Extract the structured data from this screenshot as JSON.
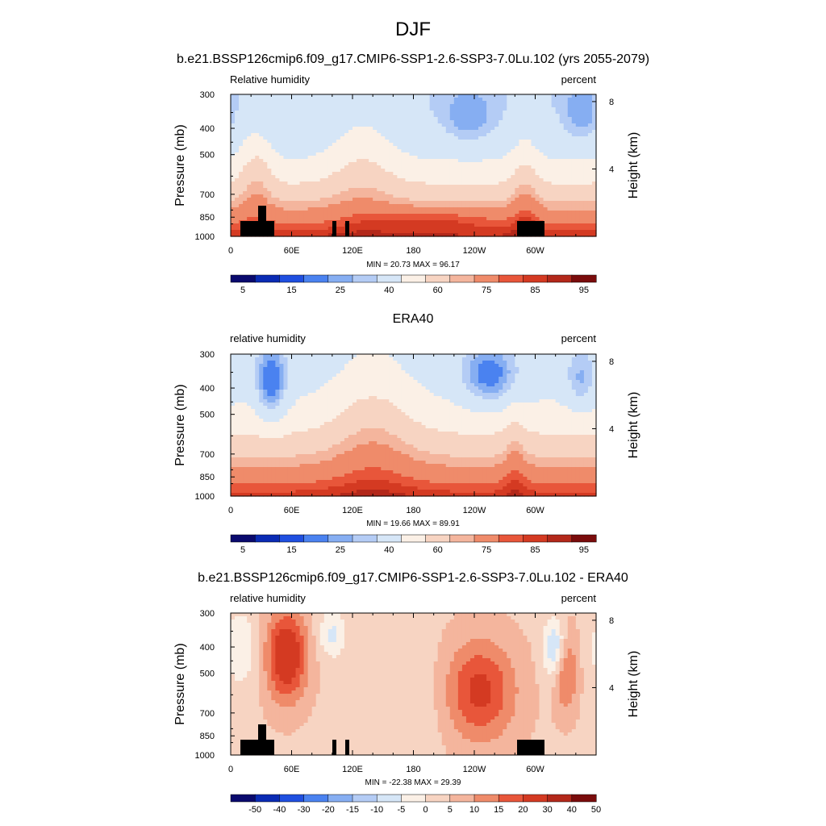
{
  "figure": {
    "main_title": "DJF",
    "colors": {
      "abs": [
        "#0a0a6e",
        "#0a2bb4",
        "#1f4fe0",
        "#4a82f0",
        "#86aef2",
        "#b4ccf5",
        "#d6e6f7",
        "#fbf0e6",
        "#f7d4c2",
        "#f4b59d",
        "#ef8b6a",
        "#e8563a",
        "#d43a22",
        "#b3281a",
        "#7a0c0c"
      ],
      "diff": [
        "#0a0a6e",
        "#0a2bb4",
        "#1f4fe0",
        "#4a82f0",
        "#86aef2",
        "#b4ccf5",
        "#d6e6f7",
        "#fbf0e6",
        "#f7d4c2",
        "#f4b59d",
        "#ef8b6a",
        "#e8563a",
        "#d43a22",
        "#b3281a",
        "#7a0c0c"
      ]
    }
  },
  "chart_data": [
    {
      "type": "heatmap",
      "title": "b.e21.BSSP126cmip6.f09_g17.CMIP6-SSP1-2.6-SSP3-7.0Lu.102 (yrs 2055-2079)",
      "left_label": "Relative humidity",
      "right_label": "percent",
      "ylabel": "Pressure (mb)",
      "ylabel_right": "Height (km)",
      "xticks": [
        "0",
        "60E",
        "120E",
        "180",
        "120W",
        "60W"
      ],
      "xtick_lon": [
        0,
        60,
        120,
        180,
        240,
        300
      ],
      "xlim": [
        0,
        360
      ],
      "yticks": [
        "300",
        "400",
        "500",
        "700",
        "850",
        "1000"
      ],
      "ytick_p": [
        300,
        400,
        500,
        700,
        850,
        1000
      ],
      "height_ticks": [
        "8",
        "4"
      ],
      "height_km": [
        8,
        4
      ],
      "stats": "MIN =  20.73  MAX =  96.17",
      "colorbar": "abs",
      "colorbar_labels": [
        "5",
        "15",
        "25",
        "40",
        "60",
        "75",
        "85",
        "95"
      ],
      "levels": [
        5,
        10,
        15,
        20,
        25,
        30,
        40,
        50,
        60,
        65,
        75,
        80,
        85,
        90,
        95
      ],
      "topography": true,
      "field": "model",
      "min": 20.73,
      "max": 96.17
    },
    {
      "type": "heatmap",
      "title": "ERA40",
      "left_label": "relative humidity",
      "right_label": "percent",
      "ylabel": "Pressure (mb)",
      "ylabel_right": "Height (km)",
      "xticks": [
        "0",
        "60E",
        "120E",
        "180",
        "120W",
        "60W"
      ],
      "xtick_lon": [
        0,
        60,
        120,
        180,
        240,
        300
      ],
      "xlim": [
        0,
        360
      ],
      "yticks": [
        "300",
        "400",
        "500",
        "700",
        "850",
        "1000"
      ],
      "ytick_p": [
        300,
        400,
        500,
        700,
        850,
        1000
      ],
      "height_ticks": [
        "8",
        "4"
      ],
      "height_km": [
        8,
        4
      ],
      "stats": "MIN =  19.66  MAX =  89.91",
      "colorbar": "abs",
      "colorbar_labels": [
        "5",
        "15",
        "25",
        "40",
        "60",
        "75",
        "85",
        "95"
      ],
      "levels": [
        5,
        10,
        15,
        20,
        25,
        30,
        40,
        50,
        60,
        65,
        75,
        80,
        85,
        90,
        95
      ],
      "topography": false,
      "field": "obs",
      "min": 19.66,
      "max": 89.91
    },
    {
      "type": "heatmap",
      "title": "b.e21.BSSP126cmip6.f09_g17.CMIP6-SSP1-2.6-SSP3-7.0Lu.102 - ERA40",
      "left_label": "relative humidity",
      "right_label": "percent",
      "ylabel": "Pressure (mb)",
      "ylabel_right": "Height (km)",
      "xticks": [
        "0",
        "60E",
        "120E",
        "180",
        "120W",
        "60W"
      ],
      "xtick_lon": [
        0,
        60,
        120,
        180,
        240,
        300
      ],
      "xlim": [
        0,
        360
      ],
      "yticks": [
        "300",
        "400",
        "500",
        "700",
        "850",
        "1000"
      ],
      "ytick_p": [
        300,
        400,
        500,
        700,
        850,
        1000
      ],
      "height_ticks": [
        "8",
        "4"
      ],
      "height_km": [
        8,
        4
      ],
      "stats": "MIN = -22.38  MAX =  29.39",
      "colorbar": "diff",
      "colorbar_labels": [
        "-50",
        "-40",
        "-30",
        "-20",
        "-15",
        "-10",
        "-5",
        "0",
        "5",
        "10",
        "15",
        "20",
        "30",
        "40",
        "50"
      ],
      "levels": [
        -50,
        -40,
        -30,
        -20,
        -15,
        -10,
        -5,
        0,
        5,
        10,
        15,
        20,
        30,
        40,
        50
      ],
      "topography": true,
      "field": "diff",
      "min": -22.38,
      "max": 29.39
    }
  ]
}
